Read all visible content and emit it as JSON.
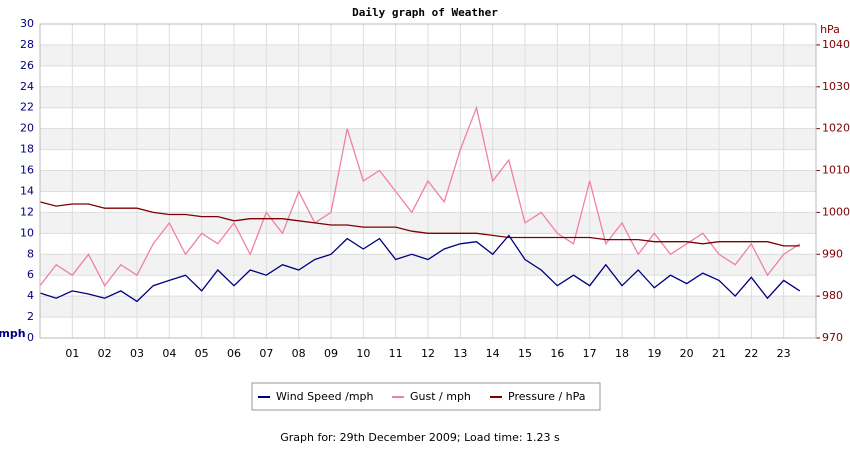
{
  "chart_data": {
    "type": "line",
    "title": "Daily graph of Weather",
    "y_label": "mph",
    "y2_label": "hPa",
    "footer": "Graph for: 29th December 2009; Load time: 1.23 s",
    "grid": true,
    "xlim": [
      0,
      24
    ],
    "xticks": [
      {
        "value": 1,
        "label": "01"
      },
      {
        "value": 2,
        "label": "02"
      },
      {
        "value": 3,
        "label": "03"
      },
      {
        "value": 4,
        "label": "04"
      },
      {
        "value": 5,
        "label": "05"
      },
      {
        "value": 6,
        "label": "06"
      },
      {
        "value": 7,
        "label": "07"
      },
      {
        "value": 8,
        "label": "08"
      },
      {
        "value": 9,
        "label": "09"
      },
      {
        "value": 10,
        "label": "10"
      },
      {
        "value": 11,
        "label": "11"
      },
      {
        "value": 12,
        "label": "12"
      },
      {
        "value": 13,
        "label": "13"
      },
      {
        "value": 14,
        "label": "14"
      },
      {
        "value": 15,
        "label": "15"
      },
      {
        "value": 16,
        "label": "16"
      },
      {
        "value": 17,
        "label": "17"
      },
      {
        "value": 18,
        "label": "18"
      },
      {
        "value": 19,
        "label": "19"
      },
      {
        "value": 20,
        "label": "20"
      },
      {
        "value": 21,
        "label": "21"
      },
      {
        "value": 22,
        "label": "22"
      },
      {
        "value": 23,
        "label": "23"
      }
    ],
    "ylim": [
      0,
      30
    ],
    "yticks": [
      0,
      2,
      4,
      6,
      8,
      10,
      12,
      14,
      16,
      18,
      20,
      22,
      24,
      26,
      28,
      30
    ],
    "y2lim": [
      970,
      1045
    ],
    "y2ticks": [
      970,
      980,
      990,
      1000,
      1010,
      1020,
      1030,
      1040
    ],
    "x": [
      0,
      0.5,
      1,
      1.5,
      2,
      2.5,
      3,
      3.5,
      4,
      4.5,
      5,
      5.5,
      6,
      6.5,
      7,
      7.5,
      8,
      8.5,
      9,
      9.5,
      10,
      10.5,
      11,
      11.5,
      12,
      12.5,
      13,
      13.5,
      14,
      14.5,
      15,
      15.5,
      16,
      16.5,
      17,
      17.5,
      18,
      18.5,
      19,
      19.5,
      20,
      20.5,
      21,
      21.5,
      22,
      22.5,
      23,
      23.5
    ],
    "series": [
      {
        "name": "Wind Speed /mph",
        "color": "#000080",
        "values": [
          4.3,
          3.8,
          4.5,
          4.2,
          3.8,
          4.5,
          3.5,
          5,
          5.5,
          6,
          4.5,
          6.5,
          5,
          6.5,
          6,
          7,
          6.5,
          7.5,
          8,
          9.5,
          8.5,
          9.5,
          7.5,
          8,
          7.5,
          8.5,
          9,
          9.2,
          8,
          9.8,
          7.5,
          6.5,
          5,
          6,
          5,
          7,
          5,
          6.5,
          4.8,
          6,
          5.2,
          6.2,
          5.5,
          4,
          5.8,
          3.8,
          5.5,
          4.5
        ]
      },
      {
        "name": "Gust / mph",
        "color": "#f080a8",
        "values": [
          5,
          7,
          6,
          8,
          5,
          7,
          6,
          9,
          11,
          8,
          10,
          9,
          11,
          8,
          12,
          10,
          14,
          11,
          12,
          20,
          15,
          16,
          14,
          12,
          15,
          13,
          18,
          22,
          15,
          17,
          11,
          12,
          10,
          9,
          15,
          9,
          11,
          8,
          10,
          8,
          9,
          10,
          8,
          7,
          9,
          6,
          8,
          9
        ]
      },
      {
        "name": "Pressure / hPa",
        "color": "#800000",
        "axis": "y2",
        "values": [
          1002.5,
          1001.5,
          1002,
          1002,
          1001,
          1001,
          1001,
          1000,
          999.5,
          999.5,
          999,
          999,
          998,
          998.5,
          998.5,
          998.5,
          998,
          997.5,
          997,
          997,
          996.5,
          996.5,
          996.5,
          995.5,
          995,
          995,
          995,
          995,
          994.5,
          994,
          994,
          994,
          994,
          994,
          994,
          993.5,
          993.5,
          993.5,
          993,
          993,
          993,
          992.5,
          993,
          993,
          993,
          993,
          992,
          992
        ]
      }
    ]
  }
}
